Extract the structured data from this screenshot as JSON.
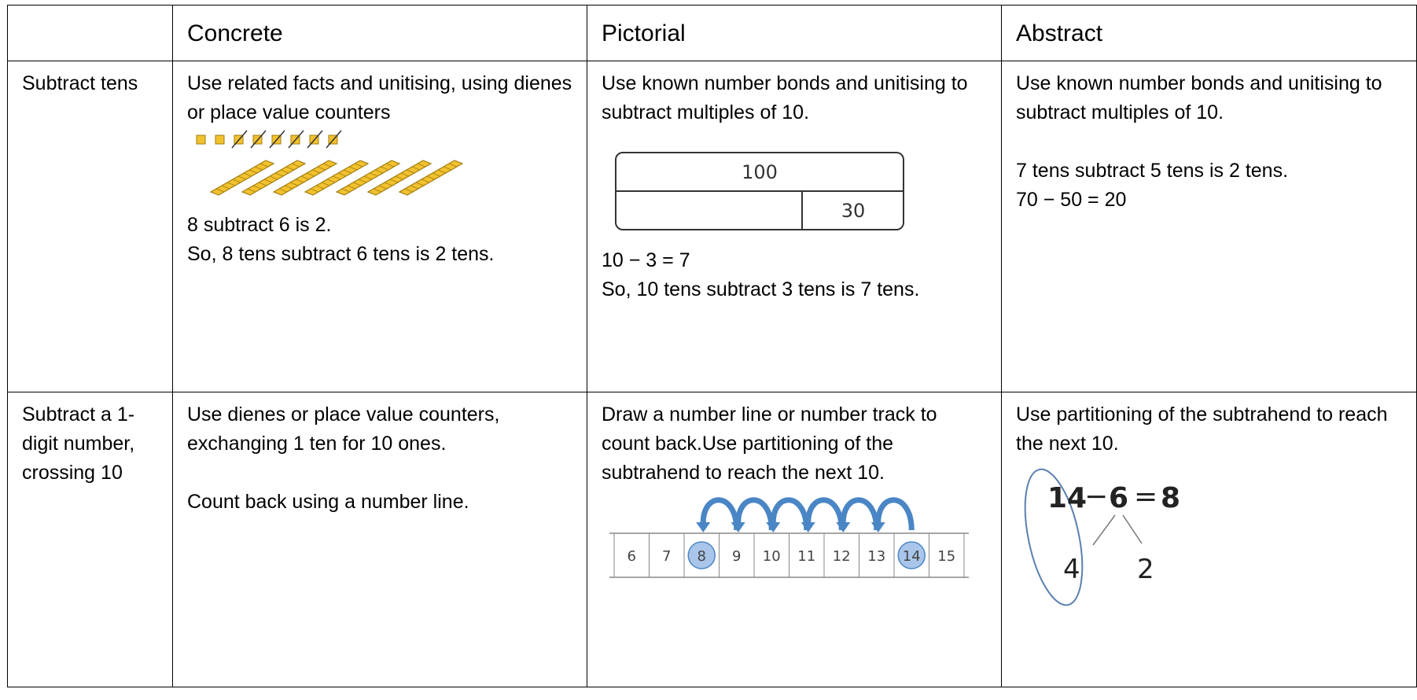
{
  "table": {
    "header": [
      "Concrete",
      "Pictorial",
      "Abstract"
    ],
    "rows": [
      {
        "label": "Subtract tens",
        "concrete": {
          "intro": "Use related facts and unitising, using dienes or place value counters",
          "after": [
            "8 subtract 6 is 2.",
            "So, 8 tens subtract 6 tens is 2 tens."
          ]
        },
        "pictorial": {
          "intro": "Use known number bonds and unitising to subtract multiples of 10.",
          "bar_whole": "100",
          "bar_part": "30",
          "after": [
            "10 − 3 = 7",
            "So, 10 tens subtract 3 tens is 7 tens."
          ]
        },
        "abstract": {
          "intro": "Use known number bonds and unitising to subtract multiples of 10.",
          "after": [
            "7 tens subtract 5 tens is 2 tens.",
            "70 − 50 = 20"
          ]
        }
      },
      {
        "label": "Subtract a 1-digit number, crossing 10",
        "concrete": {
          "intro": "Use dienes or place value counters, exchanging 1 ten for 10 ones.",
          "after": [
            "Count back using a number line."
          ]
        },
        "pictorial": {
          "intro": "Draw a number line or number track to count back.Use partitioning of the subtrahend to reach the next 10.",
          "track": [
            {
              "value": 6
            },
            {
              "value": 7
            },
            {
              "value": 8,
              "circled": true
            },
            {
              "value": 9
            },
            {
              "value": 10
            },
            {
              "value": 11
            },
            {
              "value": 12
            },
            {
              "value": 13
            },
            {
              "value": 14,
              "circled": true
            },
            {
              "value": 15
            }
          ]
        },
        "abstract": {
          "intro": "Use partitioning of the subtrahend to reach the next 10.",
          "expression": [
            "14",
            "−",
            "6",
            "=",
            "8"
          ],
          "parts": [
            "4",
            "2"
          ]
        }
      }
    ]
  }
}
